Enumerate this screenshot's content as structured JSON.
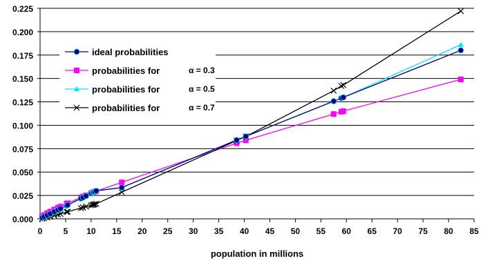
{
  "chart_data": {
    "type": "line",
    "title": "",
    "xlabel": "population in millions",
    "ylabel": "",
    "xlim": [
      0,
      85
    ],
    "ylim": [
      0,
      0.225
    ],
    "x_ticks": [
      "0",
      "5",
      "10",
      "15",
      "20",
      "25",
      "30",
      "35",
      "40",
      "45",
      "50",
      "55",
      "60",
      "65",
      "70",
      "75",
      "80",
      "85"
    ],
    "y_ticks": [
      "0.000",
      "0.025",
      "0.050",
      "0.075",
      "0.100",
      "0.125",
      "0.150",
      "0.175",
      "0.200",
      "0.225"
    ],
    "grid": "horizontal",
    "legend_position": "top-left",
    "x": [
      0.4,
      0.8,
      1.4,
      2.0,
      2.8,
      3.5,
      4.0,
      5.2,
      5.4,
      8.0,
      8.4,
      9.0,
      10.0,
      10.3,
      10.5,
      10.7,
      11.0,
      16.0,
      38.5,
      40.3,
      57.5,
      59.0,
      59.4,
      82.4
    ],
    "series": [
      {
        "name": "ideal probabilities",
        "color": "#000080",
        "marker": "circle",
        "values": [
          0.0011,
          0.0022,
          0.0038,
          0.0054,
          0.0076,
          0.0095,
          0.0109,
          0.0141,
          0.0147,
          0.0217,
          0.0228,
          0.0244,
          0.0271,
          0.028,
          0.0285,
          0.0291,
          0.0299,
          0.0334,
          0.0842,
          0.0881,
          0.1257,
          0.129,
          0.1298,
          0.1801
        ]
      },
      {
        "name": "probabilities for",
        "alpha": "α = 0.3",
        "color": "#ff00ff",
        "marker": "square",
        "values": [
          0.0025,
          0.004,
          0.006,
          0.0078,
          0.01,
          0.0118,
          0.0131,
          0.0162,
          0.0167,
          0.0229,
          0.0238,
          0.0251,
          0.0274,
          0.0281,
          0.0285,
          0.029,
          0.0296,
          0.039,
          0.0808,
          0.0839,
          0.112,
          0.1144,
          0.1151,
          0.149
        ]
      },
      {
        "name": "probabilities for",
        "alpha": "α = 0.5",
        "color": "#00e5ff",
        "marker": "triangle",
        "values": [
          0.0011,
          0.0022,
          0.0038,
          0.0054,
          0.0076,
          0.0095,
          0.0109,
          0.0141,
          0.0147,
          0.0217,
          0.0228,
          0.0244,
          0.0271,
          0.028,
          0.0285,
          0.0291,
          0.0299,
          0.0334,
          0.0842,
          0.0881,
          0.1257,
          0.129,
          0.1298,
          0.186
        ]
      },
      {
        "name": "probabilities for",
        "alpha": "α = 0.7",
        "color": "#000000",
        "marker": "x",
        "values": [
          0.0,
          0.0005,
          0.0013,
          0.0022,
          0.0035,
          0.0045,
          0.0052,
          0.0073,
          0.0076,
          0.0115,
          0.0121,
          0.013,
          0.0145,
          0.0149,
          0.0152,
          0.0156,
          0.016,
          0.0285,
          0.0836,
          0.088,
          0.137,
          0.142,
          0.143,
          0.222
        ]
      }
    ]
  }
}
